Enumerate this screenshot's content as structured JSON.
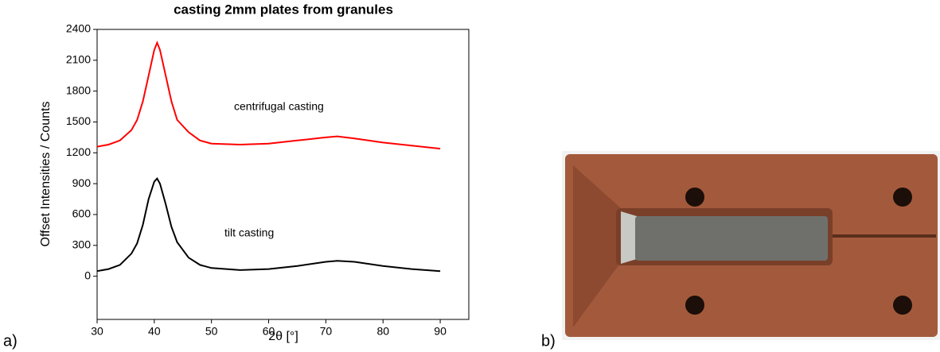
{
  "chart_data": {
    "type": "line",
    "title": "casting 2mm plates from granules",
    "x_label": "2θ [°]",
    "y_label": "Offset Intensities / Counts",
    "panel_labels": [
      "a)",
      "b)"
    ],
    "x": [
      30,
      32,
      34,
      36,
      37,
      38,
      39,
      40,
      40.5,
      41,
      42,
      43,
      44,
      46,
      48,
      50,
      55,
      60,
      65,
      70,
      72,
      75,
      80,
      85,
      90
    ],
    "series": [
      {
        "name": "centrifugal casting",
        "color": "#ff0000",
        "values": [
          1260,
          1280,
          1320,
          1420,
          1520,
          1700,
          1950,
          2200,
          2270,
          2200,
          1950,
          1700,
          1520,
          1400,
          1320,
          1290,
          1280,
          1290,
          1320,
          1350,
          1360,
          1340,
          1300,
          1270,
          1240
        ]
      },
      {
        "name": "tilt casting",
        "color": "#000000",
        "values": [
          50,
          70,
          110,
          220,
          320,
          500,
          750,
          920,
          950,
          900,
          700,
          480,
          330,
          180,
          110,
          80,
          60,
          70,
          100,
          140,
          150,
          140,
          100,
          70,
          50
        ]
      }
    ],
    "xlim": [
      30,
      95
    ],
    "xticks": [
      30,
      40,
      50,
      60,
      70,
      80,
      90
    ],
    "ylim": [
      -420,
      2400
    ],
    "yticks": [
      0,
      300,
      600,
      900,
      1200,
      1500,
      1800,
      2100,
      2400
    ]
  }
}
